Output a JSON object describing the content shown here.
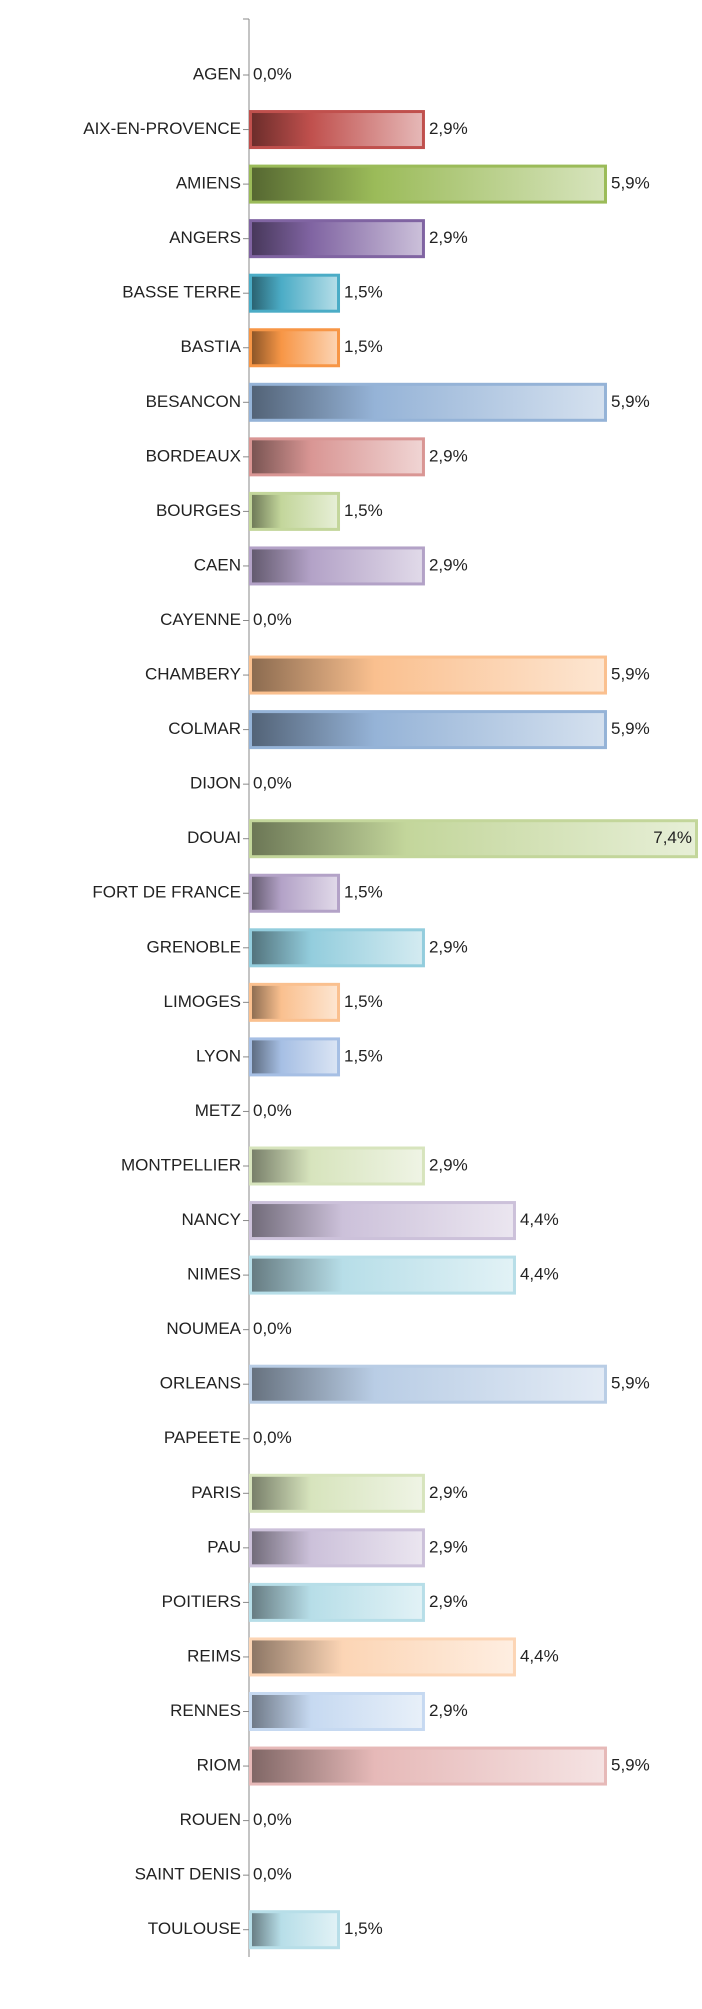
{
  "chart_data": {
    "type": "bar",
    "orientation": "horizontal",
    "categories": [
      "AGEN",
      "AIX-EN-PROVENCE",
      "AMIENS",
      "ANGERS",
      "BASSE TERRE",
      "BASTIA",
      "BESANCON",
      "BORDEAUX",
      "BOURGES",
      "CAEN",
      "CAYENNE",
      "CHAMBERY",
      "COLMAR",
      "DIJON",
      "DOUAI",
      "FORT DE FRANCE",
      "GRENOBLE",
      "LIMOGES",
      "LYON",
      "METZ",
      "MONTPELLIER",
      "NANCY",
      "NIMES",
      "NOUMEA",
      "ORLEANS",
      "PAPEETE",
      "PARIS",
      "PAU",
      "POITIERS",
      "REIMS",
      "RENNES",
      "RIOM",
      "ROUEN",
      "SAINT DENIS",
      "TOULOUSE"
    ],
    "values": [
      0,
      2.9,
      5.9,
      2.9,
      1.5,
      1.5,
      5.9,
      2.9,
      1.5,
      2.9,
      0,
      5.9,
      5.9,
      0,
      7.4,
      1.5,
      2.9,
      1.5,
      1.5,
      0,
      2.9,
      4.4,
      4.4,
      0,
      5.9,
      0,
      2.9,
      2.9,
      2.9,
      4.4,
      2.9,
      5.9,
      0,
      0,
      1.5
    ],
    "value_labels": [
      "0,0%",
      "2,9%",
      "5,9%",
      "2,9%",
      "1,5%",
      "1,5%",
      "5,9%",
      "2,9%",
      "1,5%",
      "2,9%",
      "0,0%",
      "5,9%",
      "5,9%",
      "0,0%",
      "7,4%",
      "1,5%",
      "2,9%",
      "1,5%",
      "1,5%",
      "0,0%",
      "2,9%",
      "4,4%",
      "4,4%",
      "0,0%",
      "5,9%",
      "0,0%",
      "2,9%",
      "2,9%",
      "2,9%",
      "4,4%",
      "2,9%",
      "5,9%",
      "0,0%",
      "0,0%",
      "1,5%"
    ],
    "colors": [
      "#4f81bd",
      "#c0504d",
      "#9bbb59",
      "#8064a2",
      "#4bacc6",
      "#f79646",
      "#95b3d7",
      "#d99694",
      "#c3d69b",
      "#b3a2c7",
      "#93cddd",
      "#fac08f",
      "#95b3d7",
      "#d99694",
      "#c3d69b",
      "#b3a2c7",
      "#93cddd",
      "#fac08f",
      "#a6bfe4",
      "#e6b9b8",
      "#d7e4bd",
      "#ccc1da",
      "#b7dee8",
      "#fcd5b5",
      "#b9cde5",
      "#e6b9b8",
      "#d7e4bd",
      "#ccc1da",
      "#b7dee8",
      "#fcd5b5",
      "#c6d9f1",
      "#e6b9b8",
      "#d7e4bd",
      "#ccc1da",
      "#b7dee8"
    ],
    "xlim": [
      0,
      7.4
    ]
  }
}
